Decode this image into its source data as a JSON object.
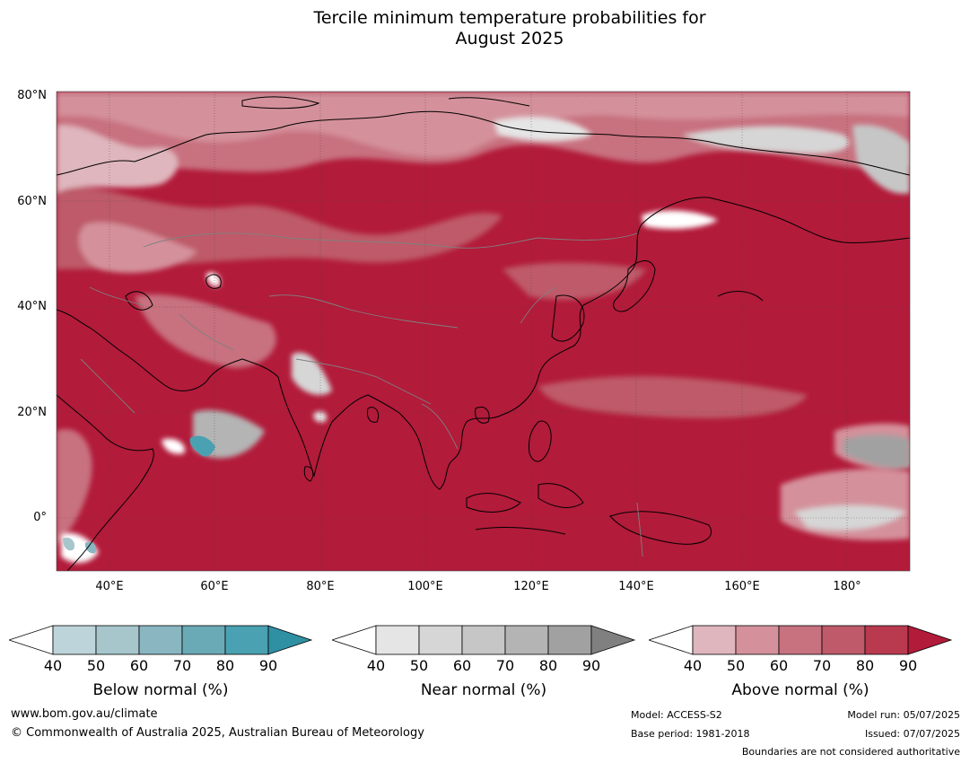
{
  "title": {
    "line1": "Tercile minimum temperature probabilities for",
    "line2": "August 2025"
  },
  "map": {
    "lat_labels": [
      "80°N",
      "60°N",
      "40°N",
      "20°N",
      "0°"
    ],
    "lon_labels": [
      "40°E",
      "60°E",
      "80°E",
      "100°E",
      "120°E",
      "140°E",
      "160°E",
      "180°"
    ],
    "colors": {
      "above_dominant": "#b21b3a",
      "above_light": "#dcb0b8",
      "near_normal": "#c8c8c8",
      "below_normal": "#4aa3b3",
      "coastline": "#000000",
      "borders": "#808080",
      "graticule": "#444444"
    }
  },
  "legend": {
    "below": {
      "title": "Below normal (%)",
      "ticks": [
        "40",
        "50",
        "60",
        "70",
        "80",
        "90"
      ],
      "colors": [
        "#ffffff",
        "#bed4db",
        "#a6c6cc",
        "#89b6c0",
        "#6aaab6",
        "#4aa1b1",
        "#2f8fa3"
      ]
    },
    "near": {
      "title": "Near normal (%)",
      "ticks": [
        "40",
        "50",
        "60",
        "70",
        "80",
        "90"
      ],
      "colors": [
        "#ffffff",
        "#e5e5e5",
        "#d6d6d6",
        "#c6c6c6",
        "#b4b4b4",
        "#a1a1a1",
        "#808080"
      ]
    },
    "above": {
      "title": "Above normal (%)",
      "ticks": [
        "40",
        "50",
        "60",
        "70",
        "80",
        "90"
      ],
      "colors": [
        "#ffffff",
        "#dfb6bd",
        "#d4919b",
        "#c8717f",
        "#be5a69",
        "#b93a4f",
        "#b21b3a"
      ]
    }
  },
  "footer": {
    "website": "www.bom.gov.au/climate",
    "copyright": "© Commonwealth of Australia 2025, Australian Bureau of Meteorology",
    "model": "Model: ACCESS-S2",
    "base_period": "Base period: 1981-2018",
    "model_run": "Model run: 05/07/2025",
    "issued": "Issued: 07/07/2025",
    "disclaimer": "Boundaries are not considered authoritative"
  }
}
